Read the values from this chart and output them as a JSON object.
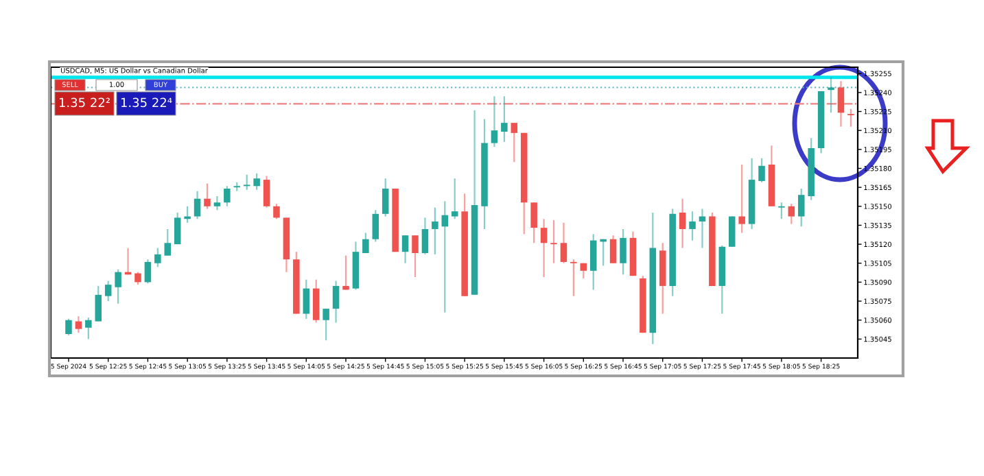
{
  "chart_data": {
    "type": "candlestick",
    "title": "USDCAD, M5: US Dollar vs Canadian Dollar",
    "categories": [
      "5 Sep 2024",
      null,
      null,
      null,
      "5 Sep 12:25",
      null,
      null,
      null,
      "5 Sep 12:45",
      null,
      null,
      null,
      "5 Sep 13:05",
      null,
      null,
      null,
      "5 Sep 13:25",
      null,
      null,
      null,
      "5 Sep 13:45",
      null,
      null,
      null,
      "5 Sep 14:05",
      null,
      null,
      null,
      "5 Sep 14:25",
      null,
      null,
      null,
      "5 Sep 14:45",
      null,
      null,
      null,
      "5 Sep 15:05",
      null,
      null,
      null,
      "5 Sep 15:25",
      null,
      null,
      null,
      "5 Sep 15:45",
      null,
      null,
      null,
      "5 Sep 16:05",
      null,
      null,
      null,
      "5 Sep 16:25",
      null,
      null,
      null,
      "5 Sep 16:45",
      null,
      null,
      null,
      "5 Sep 17:05",
      null,
      null,
      null,
      "5 Sep 17:25",
      null,
      null,
      null,
      "5 Sep 17:45",
      null,
      null,
      null,
      "5 Sep 18:05",
      null,
      null,
      null,
      "5 Sep 18:25",
      null,
      null,
      null
    ],
    "ohlc": [
      [
        1.35049,
        1.35061,
        1.35048,
        1.3506
      ],
      [
        1.35059,
        1.35063,
        1.3505,
        1.35053
      ],
      [
        1.35054,
        1.35062,
        1.35045,
        1.3506
      ],
      [
        1.35059,
        1.35087,
        1.35059,
        1.3508
      ],
      [
        1.35079,
        1.35091,
        1.35075,
        1.35088
      ],
      [
        1.35086,
        1.351,
        1.35073,
        1.35098
      ],
      [
        1.35098,
        1.35117,
        1.35096,
        1.35096
      ],
      [
        1.35097,
        1.35098,
        1.35088,
        1.3509
      ],
      [
        1.3509,
        1.35108,
        1.35089,
        1.35106
      ],
      [
        1.35105,
        1.35117,
        1.35102,
        1.35112
      ],
      [
        1.35111,
        1.35132,
        1.35111,
        1.35121
      ],
      [
        1.3512,
        1.35145,
        1.3512,
        1.35141
      ],
      [
        1.3514,
        1.3515,
        1.35137,
        1.35142
      ],
      [
        1.35142,
        1.35162,
        1.3514,
        1.35156
      ],
      [
        1.35156,
        1.35168,
        1.35148,
        1.3515
      ],
      [
        1.3515,
        1.35158,
        1.35147,
        1.35153
      ],
      [
        1.35153,
        1.35166,
        1.3515,
        1.35164
      ],
      [
        1.35165,
        1.35169,
        1.35162,
        1.35166
      ],
      [
        1.35166,
        1.35175,
        1.35163,
        1.35167
      ],
      [
        1.35166,
        1.35176,
        1.35163,
        1.35172
      ],
      [
        1.35171,
        1.35174,
        1.35149,
        1.3515
      ],
      [
        1.3515,
        1.35152,
        1.3514,
        1.35141
      ],
      [
        1.35141,
        1.35141,
        1.35098,
        1.35108
      ],
      [
        1.35108,
        1.35114,
        1.35065,
        1.35065
      ],
      [
        1.35065,
        1.35092,
        1.35061,
        1.35085
      ],
      [
        1.35085,
        1.35092,
        1.35058,
        1.3506
      ],
      [
        1.3506,
        1.35069,
        1.35044,
        1.35069
      ],
      [
        1.35069,
        1.35091,
        1.35058,
        1.35087
      ],
      [
        1.35087,
        1.35111,
        1.35084,
        1.35084
      ],
      [
        1.35085,
        1.35122,
        1.35084,
        1.35114
      ],
      [
        1.35113,
        1.35129,
        1.35113,
        1.35124
      ],
      [
        1.35124,
        1.35147,
        1.35122,
        1.35144
      ],
      [
        1.35144,
        1.35172,
        1.35142,
        1.35164
      ],
      [
        1.35164,
        1.35164,
        1.35114,
        1.35114
      ],
      [
        1.35114,
        1.35127,
        1.35105,
        1.35127
      ],
      [
        1.35127,
        1.35127,
        1.35094,
        1.35113
      ],
      [
        1.35113,
        1.35141,
        1.35112,
        1.35132
      ],
      [
        1.35132,
        1.35149,
        1.35112,
        1.35138
      ],
      [
        1.35134,
        1.35154,
        1.35066,
        1.35143
      ],
      [
        1.35142,
        1.35172,
        1.3514,
        1.35146
      ],
      [
        1.35146,
        1.3516,
        1.35079,
        1.35079
      ],
      [
        1.3508,
        1.35226,
        1.3508,
        1.35151
      ],
      [
        1.3515,
        1.35219,
        1.35132,
        1.352
      ],
      [
        1.352,
        1.35237,
        1.35197,
        1.3521
      ],
      [
        1.35209,
        1.35237,
        1.35201,
        1.35216
      ],
      [
        1.35216,
        1.35216,
        1.35185,
        1.35208
      ],
      [
        1.35208,
        1.35208,
        1.35128,
        1.35153
      ],
      [
        1.35153,
        1.35153,
        1.35121,
        1.35133
      ],
      [
        1.35133,
        1.3514,
        1.35094,
        1.35121
      ],
      [
        1.35121,
        1.35139,
        1.35105,
        1.3512
      ],
      [
        1.35121,
        1.35137,
        1.35105,
        1.35106
      ],
      [
        1.35106,
        1.35108,
        1.35079,
        1.35105
      ],
      [
        1.35105,
        1.35105,
        1.35093,
        1.35099
      ],
      [
        1.35099,
        1.35128,
        1.35084,
        1.35123
      ],
      [
        1.35122,
        1.35124,
        1.35103,
        1.35124
      ],
      [
        1.35124,
        1.35127,
        1.35105,
        1.35105
      ],
      [
        1.35105,
        1.35132,
        1.35096,
        1.35125
      ],
      [
        1.35125,
        1.3513,
        1.35095,
        1.35095
      ],
      [
        1.35093,
        1.35095,
        1.3505,
        1.3505
      ],
      [
        1.3505,
        1.35145,
        1.35041,
        1.35117
      ],
      [
        1.35115,
        1.35121,
        1.35065,
        1.35087
      ],
      [
        1.35087,
        1.35148,
        1.35079,
        1.35144
      ],
      [
        1.35145,
        1.35156,
        1.35117,
        1.35132
      ],
      [
        1.35132,
        1.35146,
        1.35123,
        1.35138
      ],
      [
        1.35138,
        1.35148,
        1.35117,
        1.35142
      ],
      [
        1.35142,
        1.35145,
        1.35087,
        1.35087
      ],
      [
        1.35087,
        1.35119,
        1.35065,
        1.35118
      ],
      [
        1.35118,
        1.35142,
        1.35118,
        1.35142
      ],
      [
        1.35142,
        1.35183,
        1.35129,
        1.35136
      ],
      [
        1.35136,
        1.35188,
        1.35132,
        1.35171
      ],
      [
        1.3517,
        1.35188,
        1.35169,
        1.35182
      ],
      [
        1.35183,
        1.35198,
        1.3515,
        1.3515
      ],
      [
        1.35149,
        1.35153,
        1.3514,
        1.3515
      ],
      [
        1.3515,
        1.35152,
        1.35136,
        1.35142
      ],
      [
        1.35142,
        1.35164,
        1.35134,
        1.35159
      ],
      [
        1.35158,
        1.35204,
        1.35155,
        1.35196
      ],
      [
        1.35196,
        1.35241,
        1.35192,
        1.35241
      ],
      [
        1.35242,
        1.35252,
        1.35224,
        1.35244
      ],
      [
        1.35244,
        1.35249,
        1.35213,
        1.35224
      ],
      [
        1.35223,
        1.35227,
        1.35213,
        1.35222
      ]
    ],
    "colors": [
      "#26a69a",
      "#ef5350",
      "#26a69a",
      "#26a69a",
      "#26a69a",
      "#26a69a",
      "#ef5350",
      "#ef5350",
      "#26a69a",
      "#26a69a",
      "#26a69a",
      "#26a69a",
      "#26a69a",
      "#26a69a",
      "#ef5350",
      "#26a69a",
      "#26a69a",
      "#26a69a",
      "#26a69a",
      "#26a69a",
      "#ef5350",
      "#ef5350",
      "#ef5350",
      "#ef5350",
      "#26a69a",
      "#ef5350",
      "#26a69a",
      "#26a69a",
      "#ef5350",
      "#26a69a",
      "#26a69a",
      "#26a69a",
      "#26a69a",
      "#ef5350",
      "#26a69a",
      "#ef5350",
      "#26a69a",
      "#26a69a",
      "#26a69a",
      "#26a69a",
      "#ef5350",
      "#26a69a",
      "#26a69a",
      "#26a69a",
      "#26a69a",
      "#ef5350",
      "#ef5350",
      "#ef5350",
      "#ef5350",
      "#ef5350",
      "#ef5350",
      "#ef5350",
      "#ef5350",
      "#26a69a",
      "#26a69a",
      "#ef5350",
      "#26a69a",
      "#ef5350",
      "#ef5350",
      "#26a69a",
      "#ef5350",
      "#26a69a",
      "#ef5350",
      "#26a69a",
      "#26a69a",
      "#ef5350",
      "#26a69a",
      "#26a69a",
      "#ef5350",
      "#26a69a",
      "#26a69a",
      "#ef5350",
      "#26a69a",
      "#ef5350",
      "#26a69a",
      "#26a69a",
      "#26a69a",
      "#26a69a",
      "#ef5350",
      "#ef5350"
    ],
    "ylim": [
      1.3503,
      1.3526
    ],
    "yticks": [
      1.35045,
      {
        "value": 1.3506,
        "label": "1.35060"
      },
      1.35075,
      {
        "value": 1.3509,
        "label": "1.35090"
      },
      1.35105,
      {
        "value": 1.3512,
        "label": "1.35120"
      },
      1.35135,
      {
        "value": 1.3515,
        "label": "1.35150"
      },
      1.35165,
      {
        "value": 1.3518,
        "label": "1.35180"
      },
      1.35195,
      {
        "value": 1.3521,
        "label": "1.35210"
      },
      1.35225,
      {
        "value": 1.3524,
        "label": "1.35240"
      },
      1.35255
    ],
    "ref_lines": [
      {
        "axis": "y",
        "value": 1.35252,
        "color": "#00e5ee",
        "line_style": "solid"
      },
      {
        "axis": "y",
        "value": 1.35244,
        "color": "#5fb8c0",
        "line_style": "dotted"
      },
      {
        "axis": "y",
        "value": 1.35231,
        "color": "#f08080",
        "line_style": "dashed"
      }
    ],
    "annotations": [
      "SELL",
      "1.00",
      "BUY",
      "1.35 22²",
      "1.35 22⁴"
    ]
  }
}
